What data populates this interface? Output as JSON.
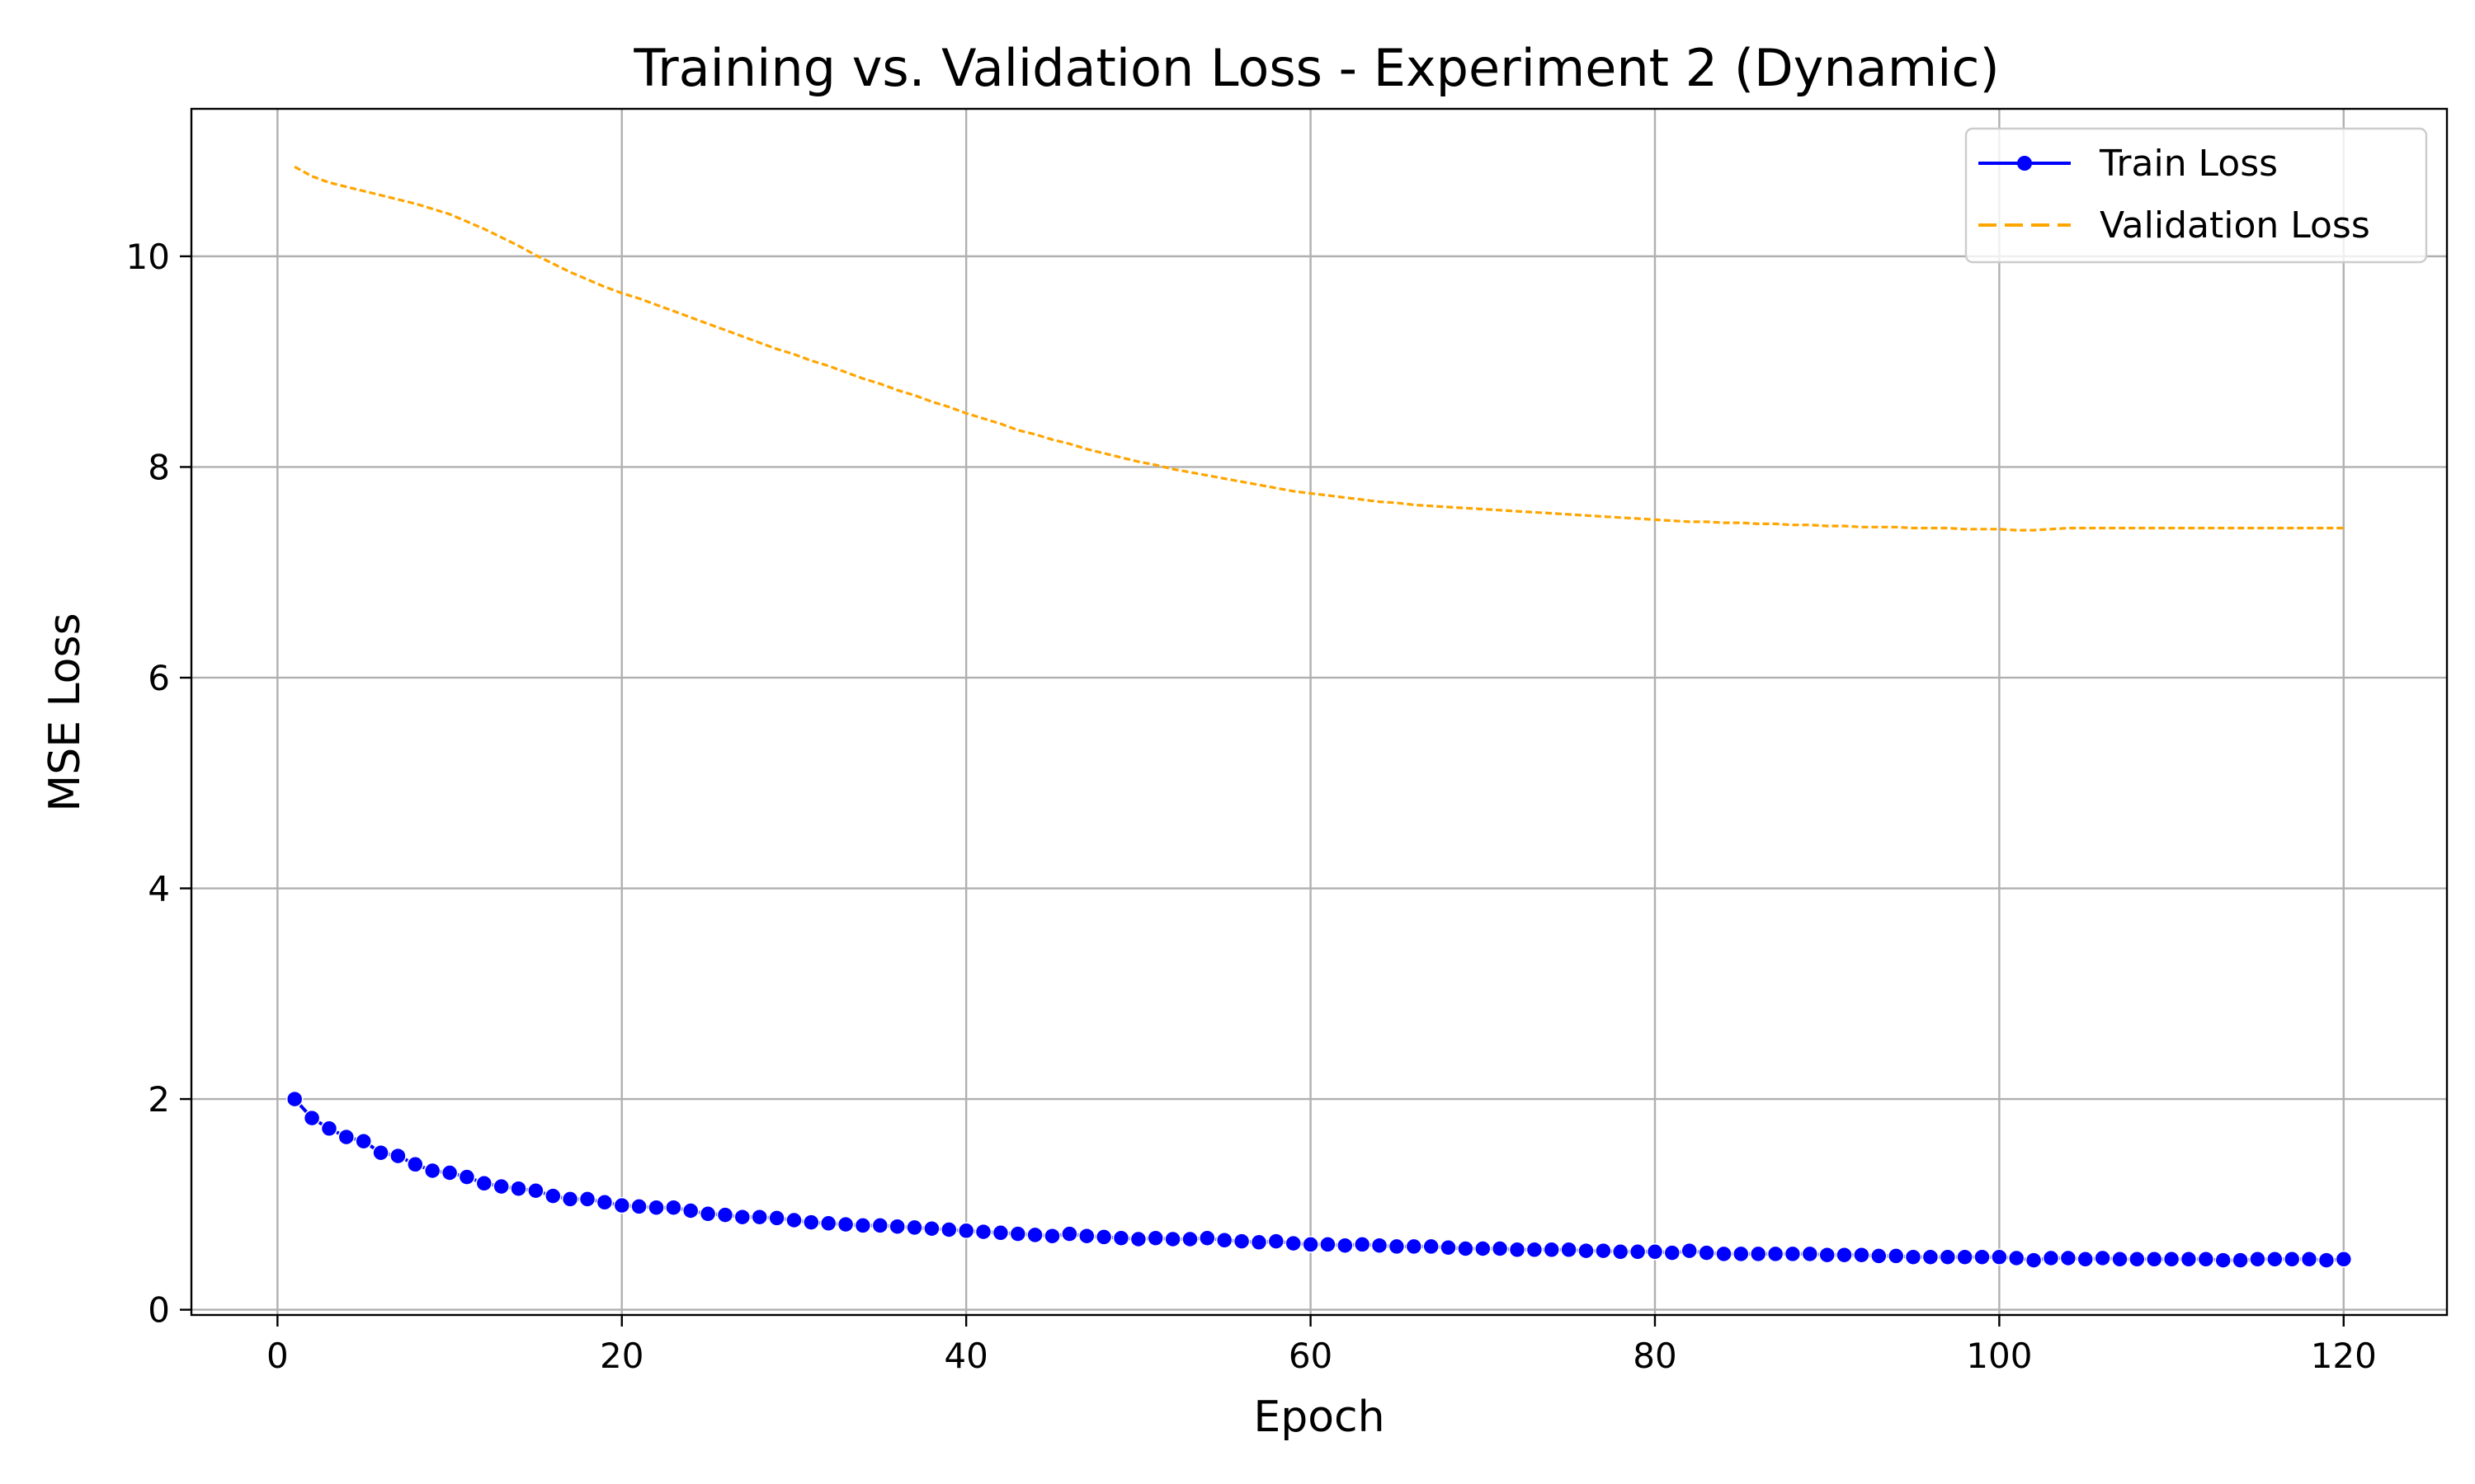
{
  "chart_data": {
    "type": "line",
    "title": "Training vs. Validation Loss - Experiment 2 (Dynamic)",
    "xlabel": "Epoch",
    "ylabel": "MSE Loss",
    "xlim": [
      -5,
      126
    ],
    "ylim": [
      -0.05,
      11.4
    ],
    "xticks": [
      0,
      20,
      40,
      60,
      80,
      100,
      120
    ],
    "yticks": [
      0,
      2,
      4,
      6,
      8,
      10
    ],
    "grid": true,
    "legend_position": "top-right",
    "series": [
      {
        "name": "Train Loss",
        "color": "#0000ff",
        "style": "solid-line-with-circle-markers",
        "x": [
          1,
          2,
          3,
          4,
          5,
          6,
          7,
          8,
          9,
          10,
          11,
          12,
          13,
          14,
          15,
          16,
          17,
          18,
          19,
          20,
          21,
          22,
          23,
          24,
          25,
          26,
          27,
          28,
          29,
          30,
          31,
          32,
          33,
          34,
          35,
          36,
          37,
          38,
          39,
          40,
          41,
          42,
          43,
          44,
          45,
          46,
          47,
          48,
          49,
          50,
          51,
          52,
          53,
          54,
          55,
          56,
          57,
          58,
          59,
          60,
          61,
          62,
          63,
          64,
          65,
          66,
          67,
          68,
          69,
          70,
          71,
          72,
          73,
          74,
          75,
          76,
          77,
          78,
          79,
          80,
          81,
          82,
          83,
          84,
          85,
          86,
          87,
          88,
          89,
          90,
          91,
          92,
          93,
          94,
          95,
          96,
          97,
          98,
          99,
          100,
          101,
          102,
          103,
          104,
          105,
          106,
          107,
          108,
          109,
          110,
          111,
          112,
          113,
          114,
          115,
          116,
          117,
          118,
          119,
          120
        ],
        "y": [
          2.0,
          1.82,
          1.72,
          1.64,
          1.6,
          1.49,
          1.46,
          1.38,
          1.32,
          1.3,
          1.26,
          1.2,
          1.17,
          1.15,
          1.13,
          1.08,
          1.05,
          1.05,
          1.02,
          0.99,
          0.98,
          0.97,
          0.97,
          0.94,
          0.91,
          0.9,
          0.88,
          0.88,
          0.87,
          0.85,
          0.83,
          0.82,
          0.81,
          0.8,
          0.8,
          0.79,
          0.78,
          0.77,
          0.76,
          0.75,
          0.74,
          0.73,
          0.72,
          0.71,
          0.7,
          0.72,
          0.7,
          0.69,
          0.68,
          0.67,
          0.68,
          0.67,
          0.67,
          0.68,
          0.66,
          0.65,
          0.64,
          0.65,
          0.63,
          0.62,
          0.62,
          0.61,
          0.62,
          0.61,
          0.6,
          0.6,
          0.6,
          0.59,
          0.58,
          0.58,
          0.58,
          0.57,
          0.57,
          0.57,
          0.57,
          0.56,
          0.56,
          0.55,
          0.55,
          0.55,
          0.54,
          0.56,
          0.54,
          0.53,
          0.53,
          0.53,
          0.53,
          0.53,
          0.53,
          0.52,
          0.52,
          0.52,
          0.51,
          0.51,
          0.5,
          0.5,
          0.5,
          0.5,
          0.5,
          0.5,
          0.49,
          0.47,
          0.49,
          0.49,
          0.48,
          0.49,
          0.48,
          0.48,
          0.48,
          0.48,
          0.48,
          0.48,
          0.47,
          0.47,
          0.48,
          0.48,
          0.48,
          0.48,
          0.47,
          0.48
        ]
      },
      {
        "name": "Validation Loss",
        "color": "#ffa500",
        "style": "dashed-line",
        "x": [
          1,
          2,
          3,
          4,
          5,
          6,
          7,
          8,
          9,
          10,
          11,
          12,
          13,
          14,
          15,
          16,
          17,
          18,
          19,
          20,
          21,
          22,
          23,
          24,
          25,
          26,
          27,
          28,
          29,
          30,
          31,
          32,
          33,
          34,
          35,
          36,
          37,
          38,
          39,
          40,
          41,
          42,
          43,
          44,
          45,
          46,
          47,
          48,
          49,
          50,
          51,
          52,
          53,
          54,
          55,
          56,
          57,
          58,
          59,
          60,
          61,
          62,
          63,
          64,
          65,
          66,
          67,
          68,
          69,
          70,
          71,
          72,
          73,
          74,
          75,
          76,
          77,
          78,
          79,
          80,
          81,
          82,
          83,
          84,
          85,
          86,
          87,
          88,
          89,
          90,
          91,
          92,
          93,
          94,
          95,
          96,
          97,
          98,
          99,
          100,
          101,
          102,
          103,
          104,
          105,
          106,
          107,
          108,
          109,
          110,
          111,
          112,
          113,
          114,
          115,
          116,
          117,
          118,
          119,
          120
        ],
        "y": [
          10.85,
          10.76,
          10.7,
          10.66,
          10.62,
          10.58,
          10.54,
          10.5,
          10.45,
          10.4,
          10.33,
          10.26,
          10.18,
          10.1,
          10.01,
          9.93,
          9.85,
          9.78,
          9.71,
          9.65,
          9.6,
          9.54,
          9.48,
          9.42,
          9.36,
          9.3,
          9.24,
          9.18,
          9.12,
          9.07,
          9.01,
          8.96,
          8.9,
          8.84,
          8.79,
          8.73,
          8.68,
          8.62,
          8.57,
          8.51,
          8.46,
          8.41,
          8.35,
          8.31,
          8.26,
          8.22,
          8.17,
          8.13,
          8.09,
          8.05,
          8.02,
          7.98,
          7.95,
          7.92,
          7.89,
          7.86,
          7.83,
          7.8,
          7.77,
          7.75,
          7.73,
          7.71,
          7.69,
          7.67,
          7.66,
          7.64,
          7.63,
          7.62,
          7.61,
          7.6,
          7.59,
          7.58,
          7.57,
          7.56,
          7.55,
          7.54,
          7.53,
          7.52,
          7.51,
          7.5,
          7.49,
          7.48,
          7.48,
          7.47,
          7.47,
          7.46,
          7.46,
          7.45,
          7.45,
          7.44,
          7.44,
          7.43,
          7.43,
          7.43,
          7.42,
          7.42,
          7.42,
          7.41,
          7.41,
          7.41,
          7.4,
          7.4,
          7.41,
          7.42,
          7.42,
          7.42,
          7.42,
          7.42,
          7.42,
          7.42,
          7.42,
          7.42,
          7.42,
          7.42,
          7.42,
          7.42,
          7.42,
          7.42,
          7.42,
          7.42
        ]
      }
    ]
  }
}
